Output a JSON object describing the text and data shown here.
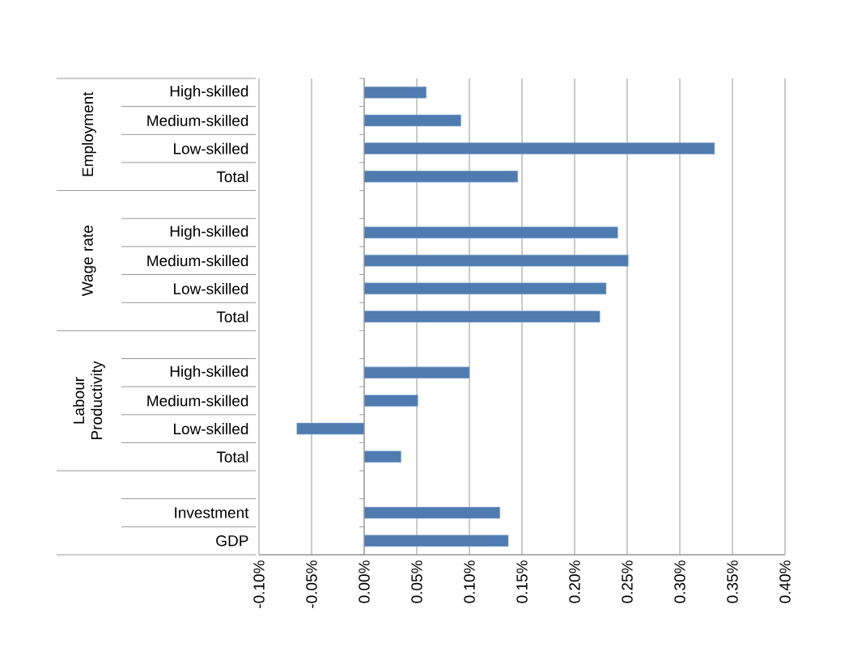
{
  "chart_data": {
    "type": "bar",
    "orientation": "horizontal",
    "categories": [
      "High-skilled",
      "Medium-skilled",
      "Low-skilled",
      "Total",
      null,
      "High-skilled",
      "Medium-skilled",
      "Low-skilled",
      "Total",
      null,
      "High-skilled",
      "Medium-skilled",
      "Low-skilled",
      "Total",
      null,
      "Investment",
      "GDP"
    ],
    "values": [
      0.059,
      0.092,
      0.333,
      0.146,
      null,
      0.241,
      0.251,
      0.23,
      0.224,
      null,
      0.1,
      0.051,
      -0.064,
      0.035,
      null,
      0.129,
      0.137
    ],
    "color": "#4e7cb1",
    "xlim": [
      -0.1,
      0.4
    ],
    "xticks": [
      {
        "value": -0.1,
        "label": "-0.10%"
      },
      {
        "value": -0.05,
        "label": "-0.05%"
      },
      {
        "value": 0,
        "label": "0.00%"
      },
      {
        "value": 0.05,
        "label": "0.05%"
      },
      {
        "value": 0.1,
        "label": "0.10%"
      },
      {
        "value": 0.15,
        "label": "0.15%"
      },
      {
        "value": 0.2,
        "label": "0.20%"
      },
      {
        "value": 0.25,
        "label": "0.25%"
      },
      {
        "value": 0.3,
        "label": "0.30%"
      },
      {
        "value": 0.35,
        "label": "0.35%"
      },
      {
        "value": 0.4,
        "label": "0.40%"
      }
    ],
    "grid": "x",
    "annotations": [
      "Employment",
      "Wage rate",
      "Labour Productivity"
    ]
  }
}
